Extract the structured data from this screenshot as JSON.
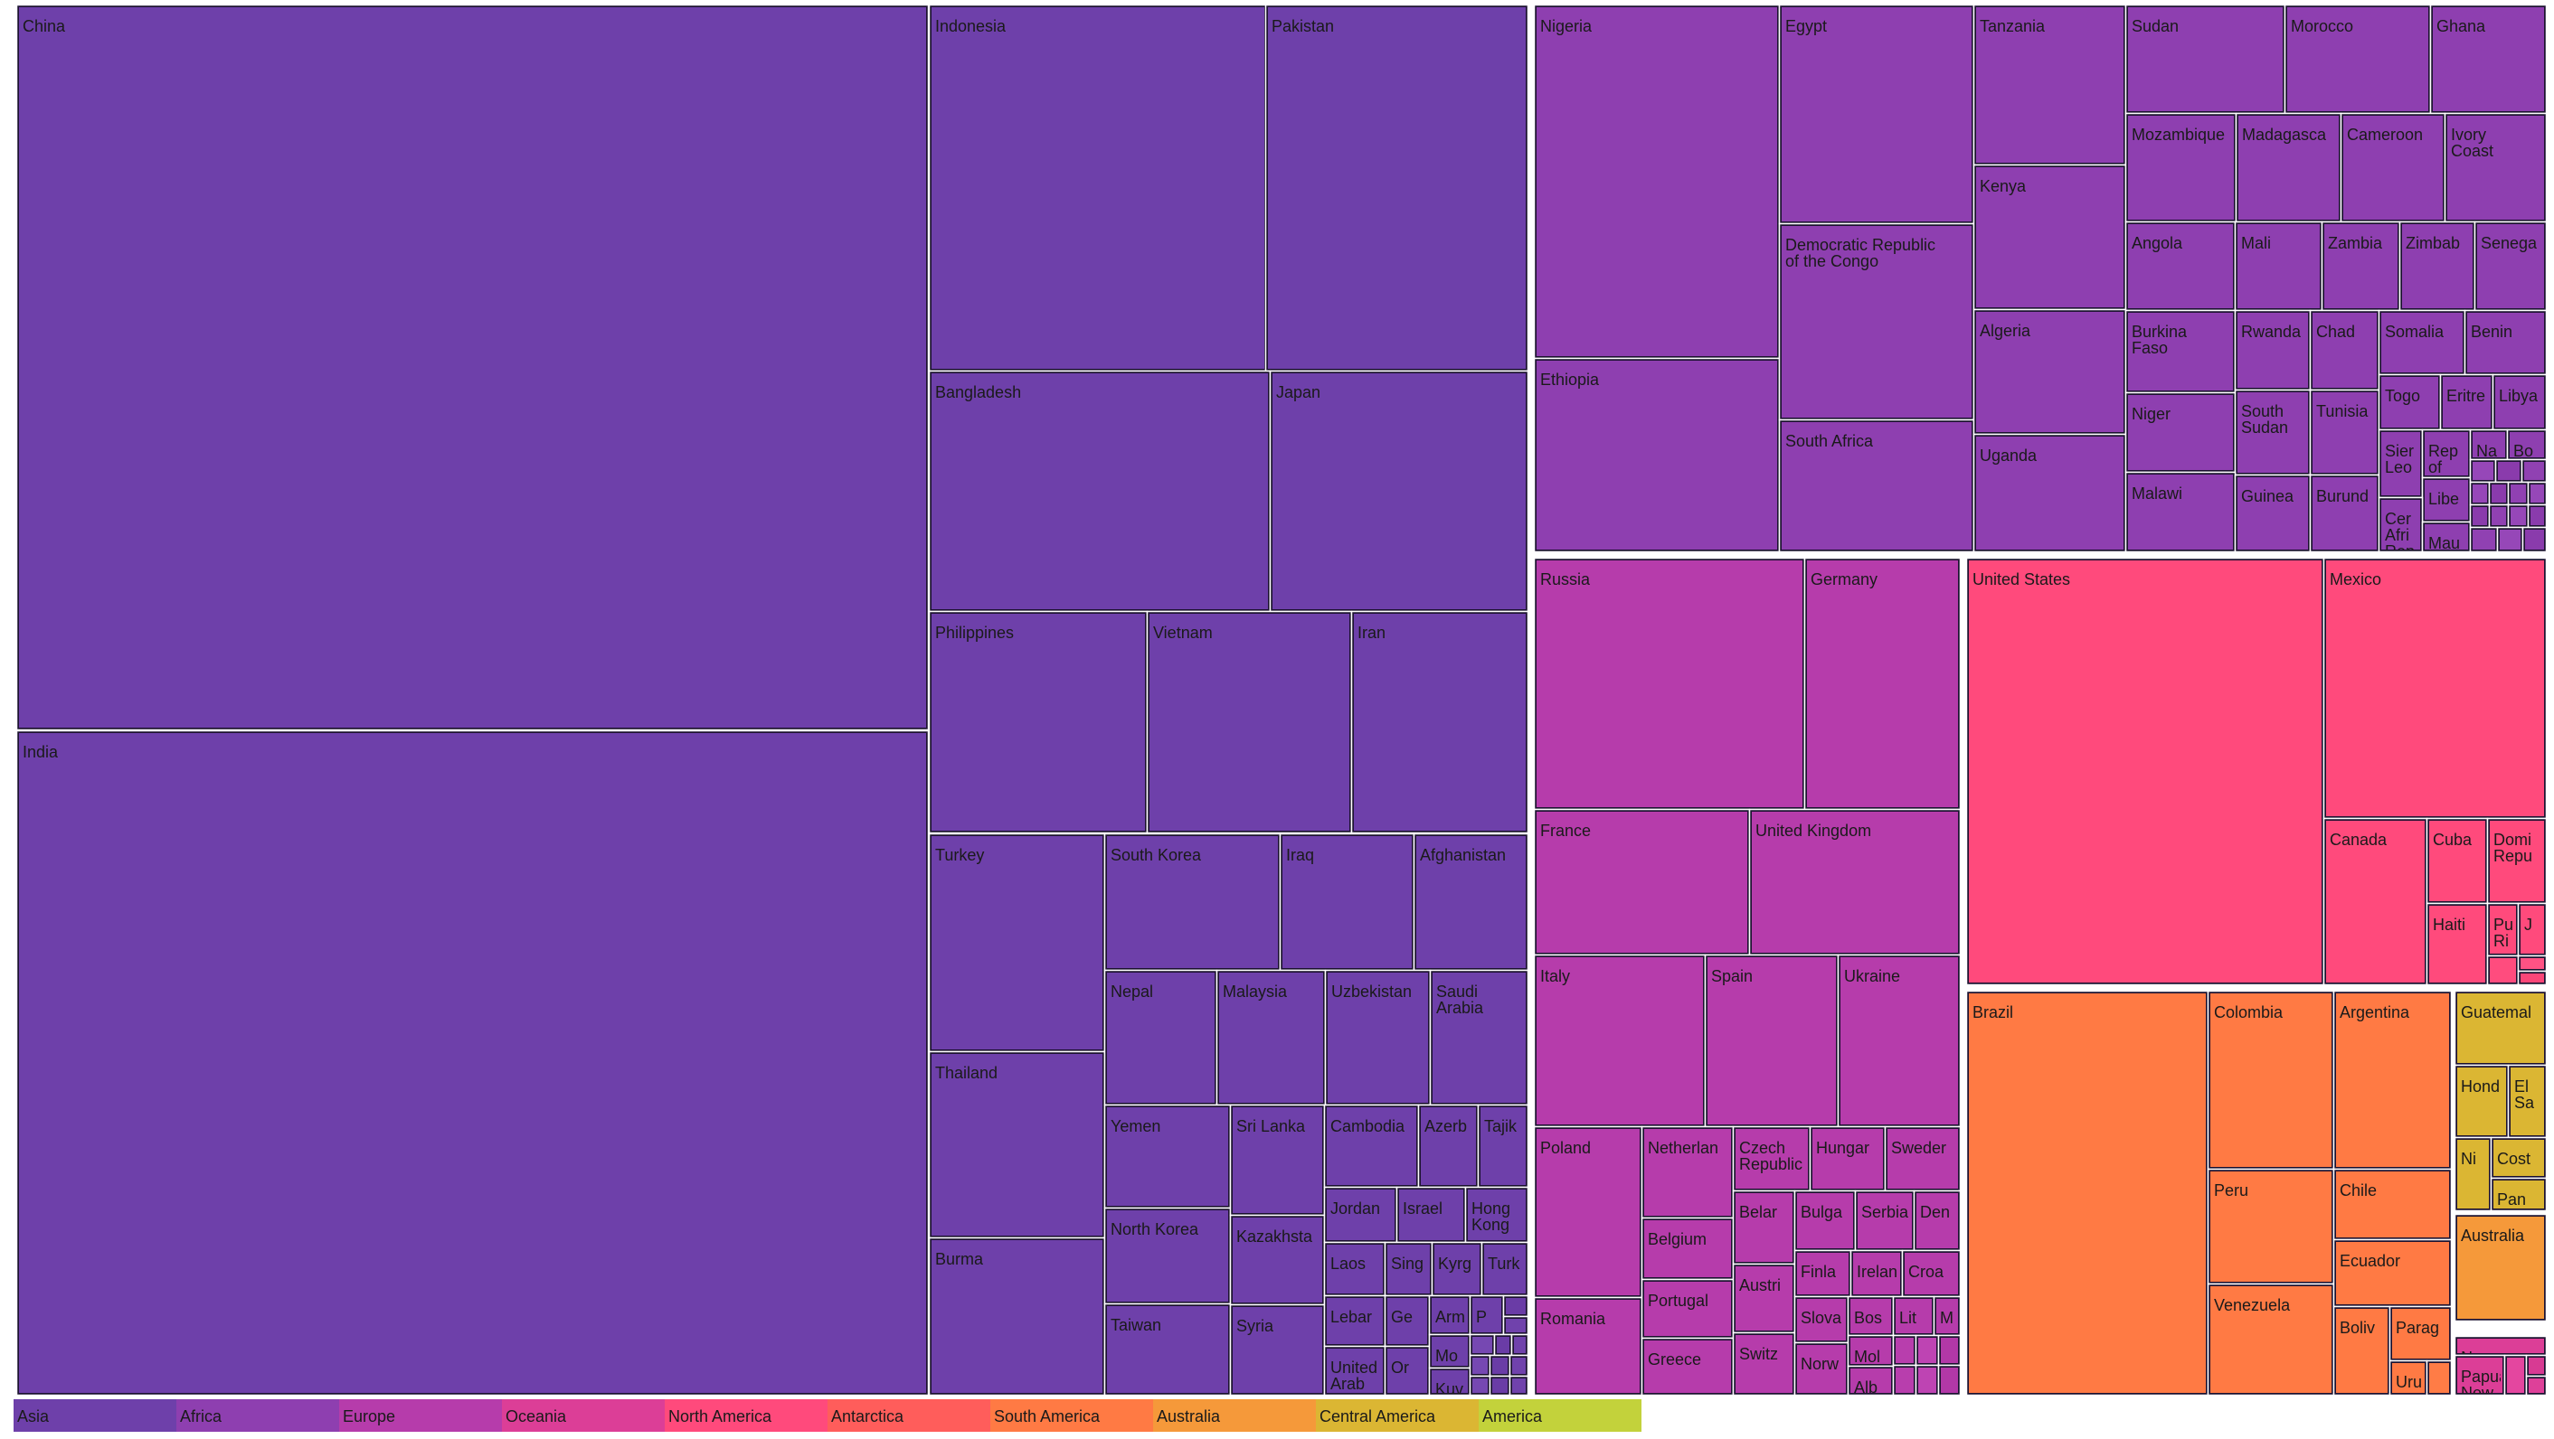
{
  "chart_data": {
    "type": "treemap",
    "legend_position": "bottom-left",
    "legend": [
      {
        "name": "Asia",
        "color": "#6e40aa"
      },
      {
        "name": "Africa",
        "color": "#8e3fb0"
      },
      {
        "name": "Europe",
        "color": "#b63cab"
      },
      {
        "name": "Oceania",
        "color": "#dc3e97"
      },
      {
        "name": "North America",
        "color": "#ff4a7c"
      },
      {
        "name": "Antarctica",
        "color": "#ff5d5b"
      },
      {
        "name": "South America",
        "color": "#ff7a44"
      },
      {
        "name": "Australia",
        "color": "#f5993a"
      },
      {
        "name": "Central America",
        "color": "#dbb633"
      },
      {
        "name": "America",
        "color": "#c3d23b"
      }
    ],
    "groups": [
      {
        "name": "Asia",
        "color": "#6e40aa",
        "countries": [
          "China",
          "India",
          "Indonesia",
          "Pakistan",
          "Bangladesh",
          "Japan",
          "Philippines",
          "Vietnam",
          "Iran",
          "Turkey",
          "Thailand",
          "Burma",
          "South Korea",
          "Iraq",
          "Afghanistan",
          "Nepal",
          "Malaysia",
          "Uzbekistan",
          "Saudi Arabia",
          "Yemen",
          "North Korea",
          "Taiwan",
          "Sri Lanka",
          "Kazakhsta",
          "Syria",
          "Cambodia",
          "Azerb",
          "Tajik",
          "Jordan",
          "Israel",
          "Hong Kong",
          "Laos",
          "Sing",
          "Kyrg",
          "Turk",
          "Lebar",
          "Ge",
          "Arm",
          "P",
          "United Arab Emira",
          "Or",
          "Mo",
          "Kuv"
        ]
      },
      {
        "name": "Africa",
        "color": "#8e3fb0",
        "countries": [
          "Nigeria",
          "Ethiopia",
          "Egypt",
          "Democratic Republic of the Congo",
          "South Africa",
          "Tanzania",
          "Kenya",
          "Algeria",
          "Uganda",
          "Sudan",
          "Morocco",
          "Ghana",
          "Mozambique",
          "Madagasca",
          "Cameroon",
          "Ivory Coast",
          "Angola",
          "Mali",
          "Zambia",
          "Zimbab",
          "Senega",
          "Burkina Faso",
          "Rwanda",
          "Chad",
          "Somalia",
          "Benin",
          "Niger",
          "South Sudan",
          "Tunisia",
          "Togo",
          "Eritre",
          "Libya",
          "Malawi",
          "Guinea",
          "Burund",
          "Sier Leo",
          "Rep of",
          "Libe",
          "Cer Afri Rep",
          "Mau",
          "Na",
          "Bo"
        ]
      },
      {
        "name": "Europe",
        "color": "#b63cab",
        "countries": [
          "Russia",
          "Germany",
          "France",
          "United Kingdom",
          "Italy",
          "Spain",
          "Ukraine",
          "Poland",
          "Romania",
          "Netherlan",
          "Belgium",
          "Portugal",
          "Greece",
          "Czech Republic",
          "Hungar",
          "Sweder",
          "Belar",
          "Bulga",
          "Serbia",
          "Den",
          "Austri",
          "Finla",
          "Irelan",
          "Croa",
          "Switz",
          "Slova",
          "Bos",
          "Lit",
          "M",
          "Norw",
          "Mol",
          "Alb"
        ]
      },
      {
        "name": "North America",
        "color": "#ff4a7c",
        "countries": [
          "United States",
          "Mexico",
          "Canada",
          "Cuba",
          "Domi Repu",
          "Haiti",
          "Pu Ri",
          "J"
        ]
      },
      {
        "name": "South America",
        "color": "#ff7a44",
        "countries": [
          "Brazil",
          "Colombia",
          "Argentina",
          "Peru",
          "Chile",
          "Venezuela",
          "Ecuador",
          "Boliv",
          "Parag",
          "Uru"
        ]
      },
      {
        "name": "Central America",
        "color": "#dbb633",
        "countries": [
          "Guatemal",
          "Hond",
          "El Sa",
          "Ni",
          "Cost",
          "Pan"
        ]
      },
      {
        "name": "Australia",
        "color": "#f5993a",
        "countries": [
          "Australia"
        ]
      },
      {
        "name": "Oceania",
        "color": "#dc3e97",
        "countries": [
          "New",
          "Papua New"
        ]
      }
    ]
  }
}
